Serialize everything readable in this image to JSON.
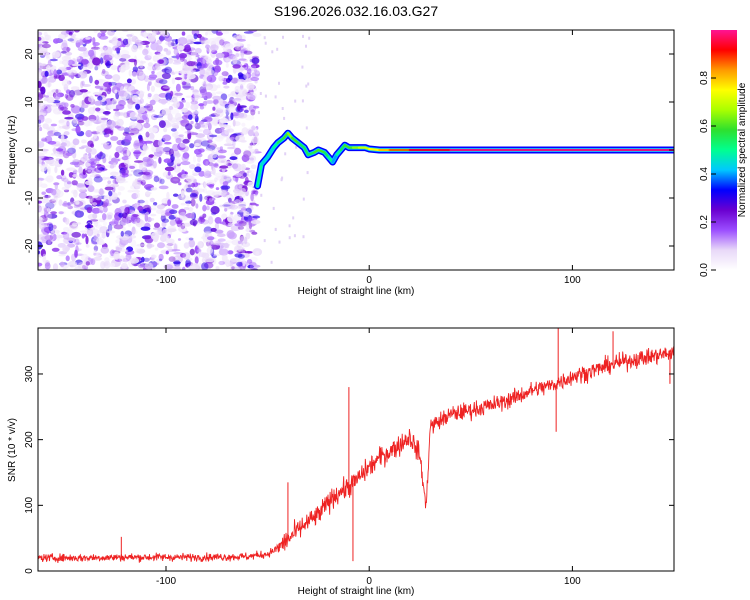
{
  "figure_title": "S196.2026.032.16.03.G27",
  "chart_data": [
    {
      "type": "heatmap",
      "title": "S196.2026.032.16.03.G27",
      "xlabel": "Height of straight line (km)",
      "ylabel": "Frequency (Hz)",
      "xlim": [
        -163,
        150
      ],
      "ylim": [
        -25,
        25
      ],
      "xticks": [
        -100,
        0,
        100
      ],
      "yticks": [
        -20,
        -10,
        0,
        10,
        20
      ],
      "colorbar": {
        "label": "Normalized spectral amplitude",
        "range": [
          0,
          1
        ],
        "ticks": [
          0.0,
          0.2,
          0.4,
          0.6,
          0.8
        ],
        "colors": [
          "#ffffff",
          "#e8d8f8",
          "#9b4dff",
          "#6a00d0",
          "#0000ff",
          "#00c8ff",
          "#00ff90",
          "#2ee02e",
          "#aaff00",
          "#ffff00",
          "#ff9900",
          "#ff0000",
          "#ff1493"
        ]
      },
      "noise_region": {
        "x_start": -163,
        "x_end": -55,
        "level": 0.15
      },
      "ridge": {
        "x": [
          -55,
          -53,
          -50,
          -47,
          -45,
          -42,
          -40,
          -38,
          -35,
          -32,
          -30,
          -27,
          -25,
          -22,
          -20,
          -18,
          -16,
          -14,
          -12,
          -10,
          -8,
          -5,
          -2,
          0,
          5,
          10,
          20,
          40,
          60,
          80,
          90,
          100,
          120,
          150
        ],
        "freq": [
          -7.5,
          -3,
          -1.5,
          0.5,
          1.5,
          2.5,
          3.5,
          2.5,
          1.5,
          0.5,
          -1,
          -0.5,
          0,
          -0.5,
          -1.5,
          -2.5,
          -1,
          0,
          1,
          0.5,
          0.5,
          0.5,
          0.5,
          0.2,
          0,
          0,
          0,
          0,
          0,
          0,
          0,
          0,
          0,
          0
        ],
        "value": [
          0.5,
          0.45,
          0.45,
          0.5,
          0.55,
          0.6,
          0.65,
          0.6,
          0.55,
          0.55,
          0.55,
          0.6,
          0.6,
          0.55,
          0.5,
          0.4,
          0.5,
          0.55,
          0.6,
          0.6,
          0.65,
          0.7,
          0.7,
          0.75,
          0.8,
          0.85,
          0.95,
          1.0,
          1.0,
          1.0,
          1.0,
          1.0,
          1.0,
          1.0
        ]
      }
    },
    {
      "type": "line",
      "xlabel": "Height of straight line (km)",
      "ylabel": "SNR (10 * v/v)",
      "xlim": [
        -163,
        150
      ],
      "ylim": [
        0,
        370
      ],
      "xticks": [
        -100,
        0,
        100
      ],
      "yticks": [
        0,
        100,
        200,
        300
      ],
      "line_color": "#ee2222",
      "series": [
        {
          "name": "SNR",
          "x": [
            -163,
            -140,
            -120,
            -100,
            -80,
            -60,
            -50,
            -45,
            -40,
            -35,
            -30,
            -25,
            -20,
            -15,
            -10,
            -5,
            0,
            5,
            10,
            15,
            20,
            25,
            28,
            30,
            40,
            50,
            60,
            70,
            80,
            90,
            100,
            110,
            120,
            130,
            140,
            150
          ],
          "y": [
            20,
            20,
            21,
            21,
            21,
            22,
            26,
            35,
            48,
            62,
            75,
            85,
            105,
            120,
            128,
            142,
            158,
            172,
            182,
            192,
            205,
            175,
            95,
            220,
            238,
            245,
            252,
            262,
            275,
            283,
            296,
            305,
            315,
            322,
            327,
            333
          ]
        }
      ],
      "spikes": [
        {
          "x": -122,
          "y": 52
        },
        {
          "x": -40,
          "y": 135
        },
        {
          "x": -10,
          "y": 280
        },
        {
          "x": -8,
          "y": 15
        },
        {
          "x": 93,
          "y": 380
        },
        {
          "x": 92,
          "y": 212
        },
        {
          "x": 120,
          "y": 365
        },
        {
          "x": 148,
          "y": 285
        }
      ]
    }
  ]
}
